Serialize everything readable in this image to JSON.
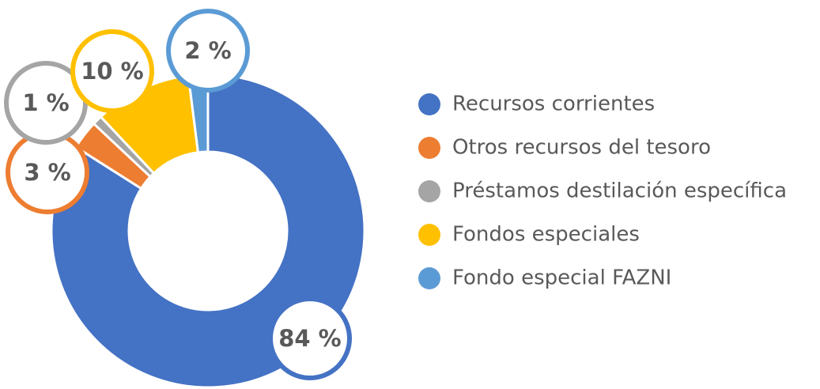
{
  "chart_data": {
    "type": "donut",
    "categories": [
      "Recursos corrientes",
      "Otros recursos del tesoro",
      "Préstamos destilación específica",
      "Fondos especiales",
      "Fondo especial FAZNI"
    ],
    "values": [
      84,
      3,
      1,
      10,
      2
    ],
    "value_labels": [
      "84 %",
      "3 %",
      "1 %",
      "10 %",
      "2 %"
    ],
    "colors": [
      "#4472c4",
      "#ed7d31",
      "#a5a5a5",
      "#ffc000",
      "#5b9bd5"
    ],
    "legend": "right"
  }
}
